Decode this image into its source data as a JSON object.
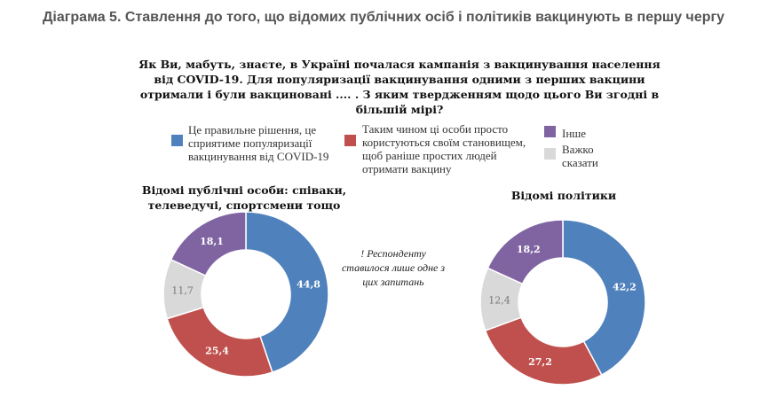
{
  "title": "Діаграма 5.  Ставлення до того, що відомих публічних осіб і політиків вакцинують в першу чергу",
  "question": "Як Ви, мабуть, знаєте, в Україні почалася кампанія з вакцинування населення від COVID-19. Для популяризації вакцинування одними з перших вакцини отримали і були вакциновані .... . З яким твердженням щодо цього Ви згодні в більшій мірі?",
  "note": "! Респонденту ставилося лише одне з цих запитань",
  "legend": [
    {
      "label": "Це правильне рішення, це сприятиме популяризації вакцинування від COVID-19",
      "color": "#4f81bd"
    },
    {
      "label": "Таким чином ці особи просто користуються своїм становищем, щоб раніше простих людей отримати вакцину",
      "color": "#c0504d"
    },
    {
      "label": "Інше",
      "color": "#8064a2"
    },
    {
      "label": "Важко сказати",
      "color": "#d9d9d9"
    }
  ],
  "chart_data": [
    {
      "type": "pie",
      "subtype": "donut",
      "title": "Відомі публічні особи: співаки, телеведучі, спортсмени тощо",
      "categories": [
        "Це правильне рішення",
        "Користуються становищем",
        "Інше",
        "Важко сказати"
      ],
      "values": [
        44.8,
        25.4,
        18.1,
        11.7
      ],
      "labels": [
        "44,8",
        "25,4",
        "18,1",
        "11,7"
      ],
      "order": [
        "Це правильне рішення",
        "Користуються становищем",
        "Важко сказати",
        "Інше"
      ]
    },
    {
      "type": "pie",
      "subtype": "donut",
      "title": "Відомі політики",
      "categories": [
        "Це правильне рішення",
        "Користуються становищем",
        "Інше",
        "Важко сказати"
      ],
      "values": [
        42.2,
        27.2,
        18.2,
        12.4
      ],
      "labels": [
        "42,2",
        "27,2",
        "18,2",
        "12,4"
      ],
      "order": [
        "Це правильне рішення",
        "Користуються становищем",
        "Важко сказати",
        "Інше"
      ]
    }
  ]
}
